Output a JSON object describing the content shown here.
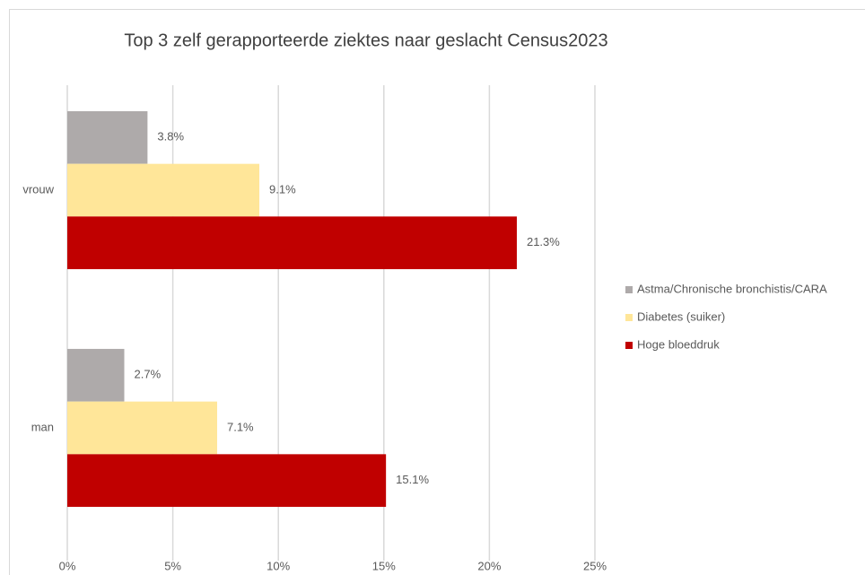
{
  "chart_data": {
    "type": "bar",
    "orientation": "horizontal",
    "title": "Top 3 zelf gerapporteerde ziektes naar geslacht Census2023",
    "categories": [
      "vrouw",
      "man"
    ],
    "series": [
      {
        "name": "Astma/Chronische bronchistis/CARA",
        "color": "#aeaaaa",
        "values": [
          3.8,
          2.7
        ],
        "value_labels": [
          "3.8%",
          "2.7%"
        ]
      },
      {
        "name": "Diabetes (suiker)",
        "color": "#ffe699",
        "values": [
          9.1,
          7.1
        ],
        "value_labels": [
          "9.1%",
          "7.1%"
        ]
      },
      {
        "name": "Hoge bloeddruk",
        "color": "#c00000",
        "values": [
          21.3,
          15.1
        ],
        "value_labels": [
          "21.3%",
          "15.1%"
        ]
      }
    ],
    "xlim": [
      0,
      25
    ],
    "xticks": [
      {
        "value": 0,
        "label": "0%"
      },
      {
        "value": 5,
        "label": "5%"
      },
      {
        "value": 10,
        "label": "10%"
      },
      {
        "value": 15,
        "label": "15%"
      },
      {
        "value": 20,
        "label": "20%"
      },
      {
        "value": 25,
        "label": "25%"
      }
    ],
    "grid": true,
    "legend": "right"
  }
}
